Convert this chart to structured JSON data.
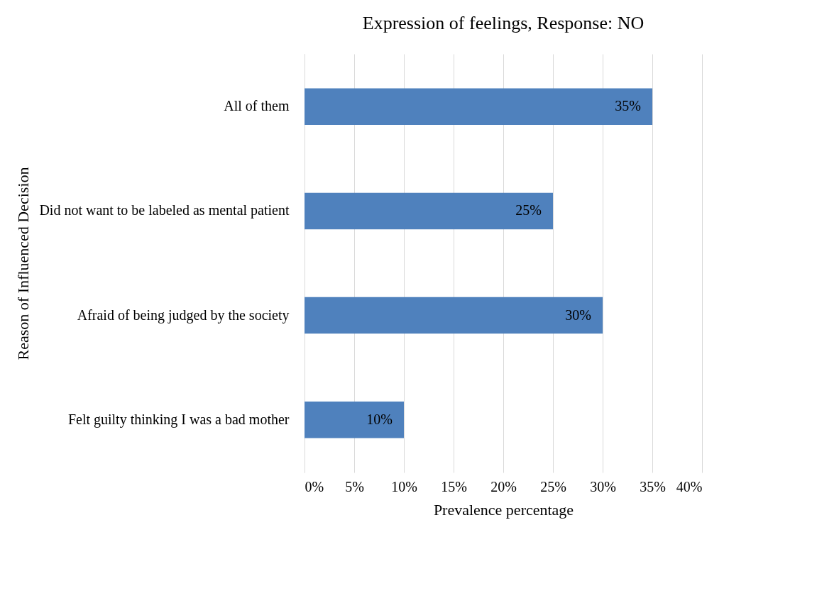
{
  "chart_data": {
    "type": "bar",
    "orientation": "horizontal",
    "title": "Expression of feelings, Response: NO",
    "xlabel": "Prevalence percentage",
    "ylabel": "Reason of Influenced Decision",
    "categories": [
      "All of them",
      "Did not want to be labeled as mental patient",
      "Afraid of being judged by the society",
      "Felt guilty thinking I was a bad mother"
    ],
    "values": [
      35,
      25,
      30,
      10
    ],
    "value_labels": [
      "35%",
      "25%",
      "30%",
      "10%"
    ],
    "color": "#4f81bd",
    "xlim": [
      0,
      40
    ],
    "xticks": [
      {
        "value": 0,
        "label": "0%"
      },
      {
        "value": 5,
        "label": "5%"
      },
      {
        "value": 10,
        "label": "10%"
      },
      {
        "value": 15,
        "label": "15%"
      },
      {
        "value": 20,
        "label": "20%"
      },
      {
        "value": 25,
        "label": "25%"
      },
      {
        "value": 30,
        "label": "30%"
      },
      {
        "value": 35,
        "label": "35%"
      },
      {
        "value": 40,
        "label": "40%"
      }
    ],
    "grid": "x"
  }
}
